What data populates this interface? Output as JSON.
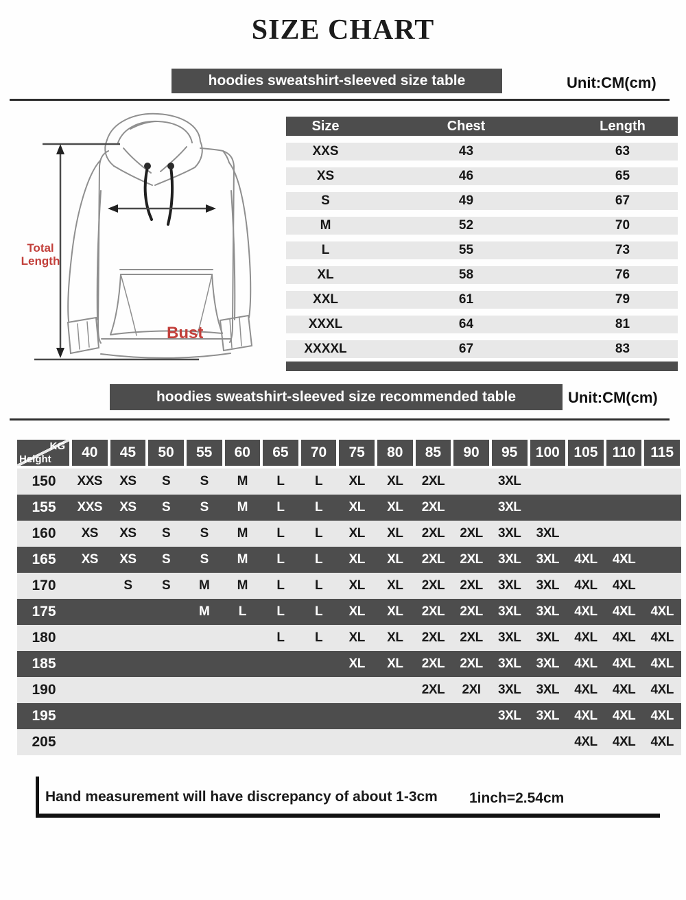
{
  "page": {
    "title": "SIZE CHART",
    "colors": {
      "dark_gray": "#4d4d4d",
      "light_row": "#e8e8e8",
      "red_label": "#c23f3a",
      "line": "#2e2e2e"
    }
  },
  "size_table": {
    "banner": "hoodies sweatshirt-sleeved size table",
    "unit": "Unit:CM(cm)",
    "columns": [
      "Size",
      "Chest",
      "Length"
    ],
    "rows": [
      {
        "size": "XXS",
        "chest": "43",
        "length": "63"
      },
      {
        "size": "XS",
        "chest": "46",
        "length": "65"
      },
      {
        "size": "S",
        "chest": "49",
        "length": "67"
      },
      {
        "size": "M",
        "chest": "52",
        "length": "70"
      },
      {
        "size": "L",
        "chest": "55",
        "length": "73"
      },
      {
        "size": "XL",
        "chest": "58",
        "length": "76"
      },
      {
        "size": "XXL",
        "chest": "61",
        "length": "79"
      },
      {
        "size": "XXXL",
        "chest": "64",
        "length": "81"
      },
      {
        "size": "XXXXL",
        "chest": "67",
        "length": "83"
      }
    ]
  },
  "diagram": {
    "bust_label": "Bust",
    "total_length_line1": "Total",
    "total_length_line2": "Length"
  },
  "recommend_table": {
    "banner": "hoodies sweatshirt-sleeved size recommended table",
    "unit": "Unit:CM(cm)",
    "corner_top": "KG",
    "corner_bottom": "Height",
    "weights": [
      "40",
      "45",
      "50",
      "55",
      "60",
      "65",
      "70",
      "75",
      "80",
      "85",
      "90",
      "95",
      "100",
      "105",
      "110",
      "115"
    ],
    "rows": [
      {
        "height": "150",
        "cells": [
          "XXS",
          "XS",
          "S",
          "S",
          "M",
          "L",
          "L",
          "XL",
          "XL",
          "2XL",
          "",
          "3XL",
          "",
          "",
          "",
          ""
        ]
      },
      {
        "height": "155",
        "cells": [
          "XXS",
          "XS",
          "S",
          "S",
          "M",
          "L",
          "L",
          "XL",
          "XL",
          "2XL",
          "",
          "3XL",
          "",
          "",
          "",
          ""
        ]
      },
      {
        "height": "160",
        "cells": [
          "XS",
          "XS",
          "S",
          "S",
          "M",
          "L",
          "L",
          "XL",
          "XL",
          "2XL",
          "2XL",
          "3XL",
          "3XL",
          "",
          "",
          ""
        ]
      },
      {
        "height": "165",
        "cells": [
          "XS",
          "XS",
          "S",
          "S",
          "M",
          "L",
          "L",
          "XL",
          "XL",
          "2XL",
          "2XL",
          "3XL",
          "3XL",
          "4XL",
          "4XL",
          ""
        ]
      },
      {
        "height": "170",
        "cells": [
          "",
          "S",
          "S",
          "M",
          "M",
          "L",
          "L",
          "XL",
          "XL",
          "2XL",
          "2XL",
          "3XL",
          "3XL",
          "4XL",
          "4XL",
          ""
        ]
      },
      {
        "height": "175",
        "cells": [
          "",
          "",
          "",
          "M",
          "L",
          "L",
          "L",
          "XL",
          "XL",
          "2XL",
          "2XL",
          "3XL",
          "3XL",
          "4XL",
          "4XL",
          "4XL"
        ]
      },
      {
        "height": "180",
        "cells": [
          "",
          "",
          "",
          "",
          "",
          "L",
          "L",
          "XL",
          "XL",
          "2XL",
          "2XL",
          "3XL",
          "3XL",
          "4XL",
          "4XL",
          "4XL"
        ]
      },
      {
        "height": "185",
        "cells": [
          "",
          "",
          "",
          "",
          "",
          "",
          "",
          "XL",
          "XL",
          "2XL",
          "2XL",
          "3XL",
          "3XL",
          "4XL",
          "4XL",
          "4XL"
        ]
      },
      {
        "height": "190",
        "cells": [
          "",
          "",
          "",
          "",
          "",
          "",
          "",
          "",
          "",
          "2XL",
          "2XI",
          "3XL",
          "3XL",
          "4XL",
          "4XL",
          "4XL"
        ]
      },
      {
        "height": "195",
        "cells": [
          "",
          "",
          "",
          "",
          "",
          "",
          "",
          "",
          "",
          "",
          "",
          "3XL",
          "3XL",
          "4XL",
          "4XL",
          "4XL"
        ]
      },
      {
        "height": "205",
        "cells": [
          "",
          "",
          "",
          "",
          "",
          "",
          "",
          "",
          "",
          "",
          "",
          "",
          "",
          "4XL",
          "4XL",
          "4XL"
        ]
      }
    ]
  },
  "footer": {
    "note": "Hand measurement will have discrepancy of about 1-3cm",
    "conversion": "1inch=2.54cm"
  }
}
